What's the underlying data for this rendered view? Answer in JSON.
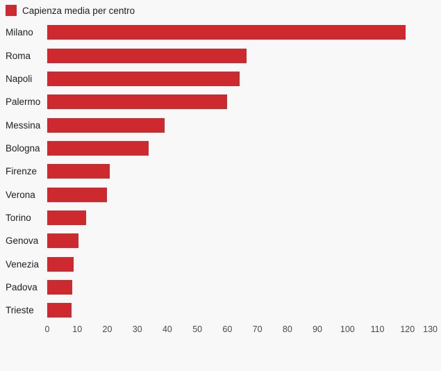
{
  "legend": {
    "label": "Capienza media per centro"
  },
  "colors": {
    "bar": "#cc2a2f",
    "background": "#f8f8f8",
    "category_text": "#1d1d1d",
    "value_text": "#222222",
    "tick_text": "#494949"
  },
  "chart_data": {
    "type": "bar",
    "orientation": "horizontal",
    "title": "Capienza media per centro",
    "categories": [
      "Milano",
      "Roma",
      "Napoli",
      "Palermo",
      "Messina",
      "Bologna",
      "Firenze",
      "Verona",
      "Torino",
      "Genova",
      "Venezia",
      "Padova",
      "Trieste"
    ],
    "values": [
      119.3,
      66.3,
      64,
      59.9,
      39.1,
      33.8,
      20.8,
      19.8,
      12.9,
      10.3,
      8.7,
      8.3,
      8.1
    ],
    "value_labels": [
      "119,3",
      "66,3",
      "64",
      "59,9",
      "39,1",
      "33,8",
      "20,8",
      "19,8",
      "12,9",
      "10,3",
      "8,7",
      "8,3",
      "8,1"
    ],
    "xlabel": "",
    "ylabel": "",
    "xlim": [
      0,
      130
    ],
    "x_ticks": [
      0,
      10,
      20,
      30,
      40,
      50,
      60,
      70,
      80,
      90,
      100,
      110,
      120,
      130
    ],
    "grid": false,
    "legend_position": "top-left"
  }
}
